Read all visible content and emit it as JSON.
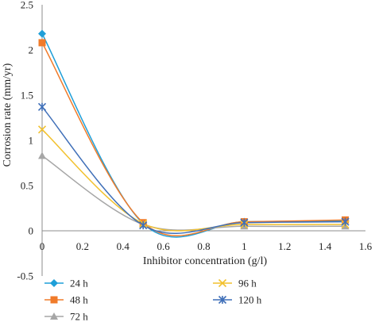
{
  "chart_data": {
    "type": "line",
    "title": "",
    "xlabel": "Inhibitor concentration (g/l)",
    "ylabel": "Corrosion rate (mm/yr)",
    "xlim": [
      0,
      1.6
    ],
    "ylim": [
      -0.5,
      2.5
    ],
    "xticks": [
      "0",
      "0.2",
      "0.4",
      "0.6",
      "0.8",
      "1",
      "1.2",
      "1.4",
      "1.6"
    ],
    "yticks": [
      "-0.5",
      "0",
      "0.5",
      "1",
      "1.5",
      "2",
      "2.5"
    ],
    "x": [
      0,
      0.5,
      1,
      1.5
    ],
    "smooth": true,
    "grid": false,
    "legend_position": "bottom",
    "series": [
      {
        "name": "24 h",
        "values": [
          2.18,
          0.08,
          0.1,
          0.11
        ],
        "color": "#1f9fd8",
        "marker": "diamond"
      },
      {
        "name": "48 h",
        "values": [
          2.08,
          0.09,
          0.1,
          0.12
        ],
        "color": "#f07b2a",
        "marker": "square"
      },
      {
        "name": "72 h",
        "values": [
          0.83,
          0.07,
          0.05,
          0.05
        ],
        "color": "#a6a6a6",
        "marker": "triangle"
      },
      {
        "name": "96 h",
        "values": [
          1.12,
          0.08,
          0.07,
          0.07
        ],
        "color": "#f2c12e",
        "marker": "x"
      },
      {
        "name": "120 h",
        "values": [
          1.37,
          0.06,
          0.09,
          0.1
        ],
        "color": "#3f6fb8",
        "marker": "star"
      }
    ]
  }
}
